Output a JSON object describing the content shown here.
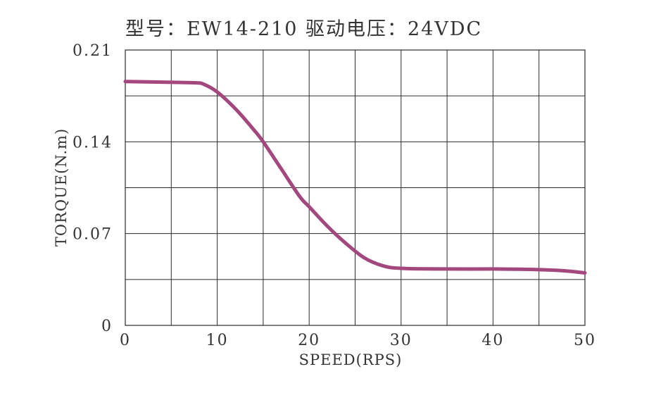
{
  "title": "型号：EW14-210   驱动电压：24VDC",
  "chart_data": {
    "type": "line",
    "title": "型号：EW14-210   驱动电压：24VDC",
    "xlabel": "SPEED(RPS)",
    "ylabel": "TORQUE(N.m)",
    "xlim": [
      0,
      50
    ],
    "ylim": [
      0,
      0.21
    ],
    "x_ticks": [
      "0",
      "10",
      "20",
      "30",
      "40",
      "50"
    ],
    "y_ticks": [
      "0",
      "0.07",
      "0.14",
      "0.21"
    ],
    "grid": true,
    "series": [
      {
        "color": "#a3487f",
        "x": [
          0,
          4,
          7.5,
          8.5,
          10,
          12,
          14,
          15,
          17,
          19,
          20,
          22,
          24,
          26,
          28,
          30,
          35,
          40,
          45,
          48,
          50
        ],
        "y": [
          0.186,
          0.1855,
          0.185,
          0.184,
          0.178,
          0.165,
          0.149,
          0.14,
          0.119,
          0.098,
          0.0905,
          0.0755,
          0.0625,
          0.0515,
          0.0455,
          0.0435,
          0.043,
          0.043,
          0.0425,
          0.0415,
          0.04
        ]
      }
    ]
  }
}
